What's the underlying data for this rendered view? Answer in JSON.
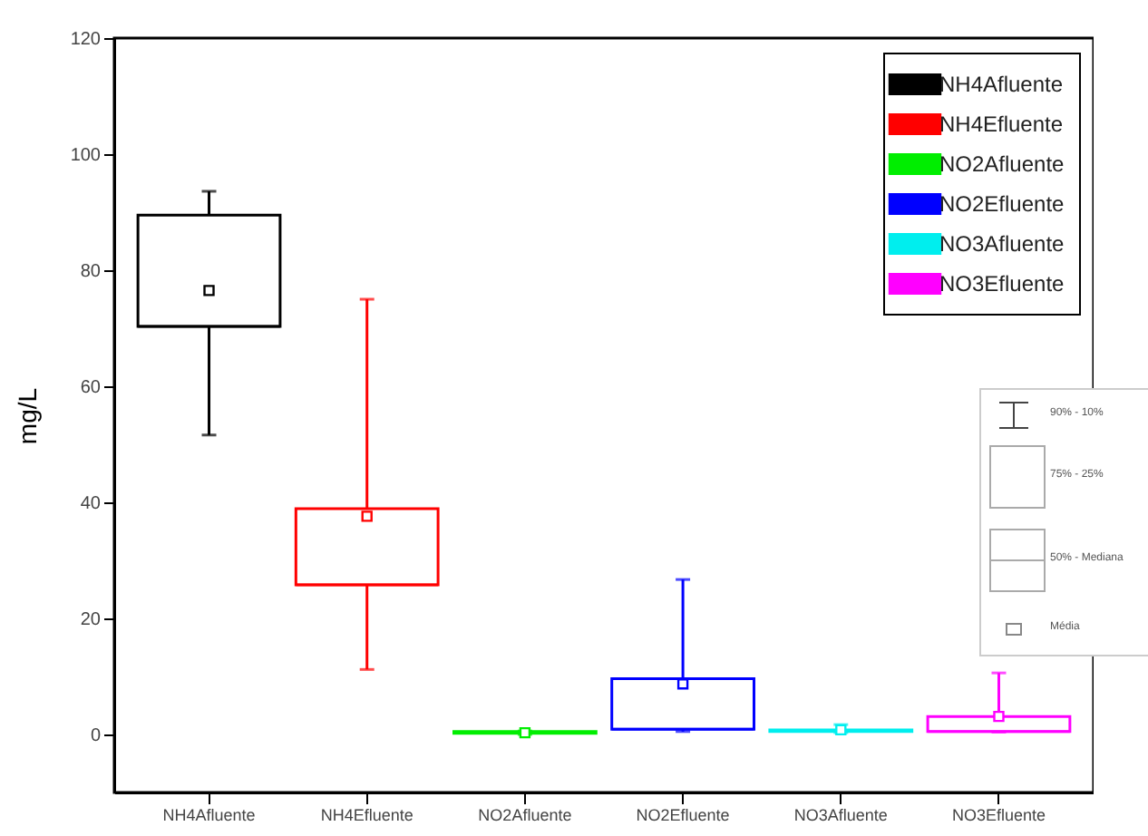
{
  "chart_data": {
    "type": "box",
    "ylabel": "mg/L",
    "categories": [
      "NH4Afluente",
      "NH4Efluente",
      "NO2Afluente",
      "NO2Efluente",
      "NO3Afluente",
      "NO3Efluente"
    ],
    "series": [
      {
        "name": "NH4Afluente",
        "color": "#000000",
        "boxes": [
          {
            "low": 51.6,
            "q1": 70.3,
            "median": 70.3,
            "q3": 89.5,
            "high": 93.6,
            "mean": 76.5
          },
          null,
          null,
          null,
          null,
          null
        ]
      },
      {
        "name": "NH4Efluente",
        "color": "#ff0000",
        "boxes": [
          null,
          {
            "low": 11.2,
            "q1": 25.8,
            "median": 25.8,
            "q3": 38.9,
            "high": 75,
            "mean": 37.6
          },
          null,
          null,
          null,
          null
        ]
      },
      {
        "name": "NO2Afluente",
        "color": "#00ee00",
        "boxes": [
          null,
          null,
          {
            "low": 0,
            "q1": 0.2,
            "median": 0.3,
            "q3": 0.5,
            "high": 0.6,
            "mean": 0.3
          },
          null,
          null,
          null
        ]
      },
      {
        "name": "NO2Efluente",
        "color": "#0000ff",
        "boxes": [
          null,
          null,
          null,
          {
            "low": 0.5,
            "q1": 0.9,
            "median": 0.9,
            "q3": 9.6,
            "high": 26.7,
            "mean": 8.7
          },
          null,
          null
        ]
      },
      {
        "name": "NO3Afluente",
        "color": "#00eeee",
        "boxes": [
          null,
          null,
          null,
          null,
          {
            "low": 0.3,
            "q1": 0.5,
            "median": 0.6,
            "q3": 0.8,
            "high": 1.7,
            "mean": 0.8
          },
          null
        ]
      },
      {
        "name": "NO3Efluente",
        "color": "#ff00ff",
        "boxes": [
          null,
          null,
          null,
          null,
          null,
          {
            "low": 0.4,
            "q1": 0.5,
            "median": 0.5,
            "q3": 3.1,
            "high": 10.6,
            "mean": 3.1
          }
        ]
      }
    ],
    "ylim": [
      -10,
      120
    ],
    "yticks": [
      0,
      20,
      40,
      60,
      80,
      100,
      120
    ],
    "grid": false,
    "legend": "top right",
    "annotations": [
      "90% - 10%",
      "75% - 25%",
      "50% - Mediana",
      "Média"
    ]
  }
}
